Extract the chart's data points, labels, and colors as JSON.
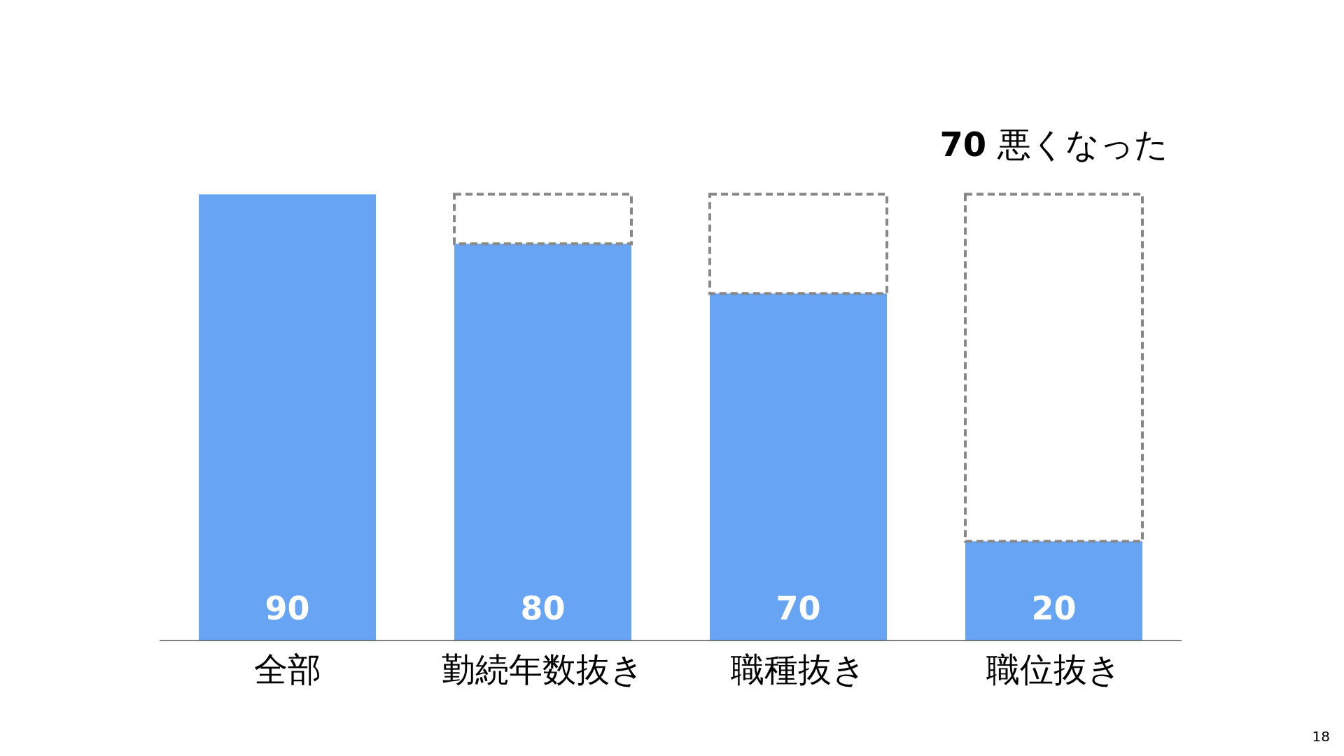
{
  "chart_data": {
    "type": "bar",
    "stacked": true,
    "categories": [
      "全部",
      "勤続年数抜き",
      "職種抜き",
      "職位抜き"
    ],
    "series": [
      {
        "color": "#68a4f4",
        "values": [
          90,
          80,
          70,
          20
        ],
        "value_labels": [
          "90",
          "80",
          "70",
          "20"
        ]
      },
      {
        "color": "#888888",
        "line_style": "dashed",
        "values": [
          null,
          10,
          20,
          70
        ]
      }
    ],
    "annotations": [
      {
        "text": "70 悪くなった",
        "x": "職位抜き",
        "y": 90
      },
      "18"
    ]
  }
}
